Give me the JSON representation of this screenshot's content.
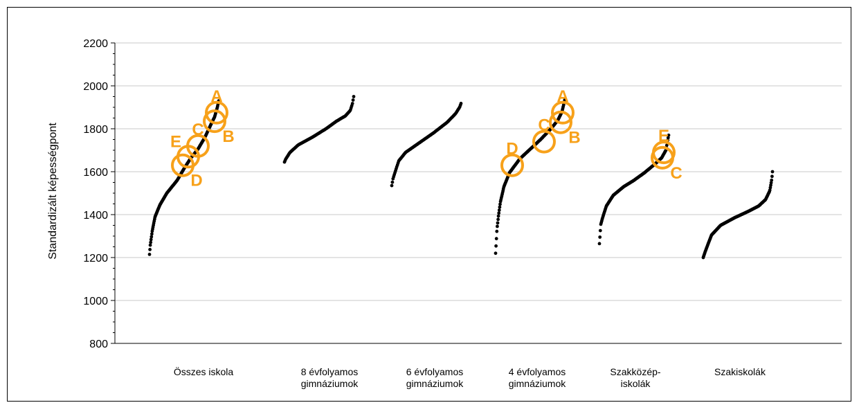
{
  "chart_data": {
    "type": "scatter",
    "title": "",
    "xlabel": "",
    "ylabel": "Standardizált képességpont",
    "ylim": [
      800,
      2200
    ],
    "yticks": [
      800,
      1000,
      1200,
      1400,
      1600,
      1800,
      2000,
      2200
    ],
    "grid": true,
    "legend": "none",
    "point_color": "#000000",
    "annotation_color": "#F7A11A",
    "categories": [
      {
        "lines": [
          "Összes iskola"
        ]
      },
      {
        "lines": [
          "8 évfolyamos",
          "gimnáziumok"
        ]
      },
      {
        "lines": [
          "6 évfolyamos",
          "gimnáziumok"
        ]
      },
      {
        "lines": [
          "4 évfolyamos",
          "gimnáziumok"
        ]
      },
      {
        "lines": [
          "Szakközép-",
          "iskolák"
        ]
      },
      {
        "lines": [
          "Szakiskolák"
        ]
      }
    ],
    "series": [
      {
        "category": 0,
        "n": 180,
        "curve": [
          [
            0,
            1215
          ],
          [
            0.01,
            1255
          ],
          [
            0.04,
            1325
          ],
          [
            0.08,
            1390
          ],
          [
            0.15,
            1445
          ],
          [
            0.25,
            1500
          ],
          [
            0.4,
            1560
          ],
          [
            0.5,
            1615
          ],
          [
            0.6,
            1665
          ],
          [
            0.7,
            1705
          ],
          [
            0.8,
            1760
          ],
          [
            0.88,
            1815
          ],
          [
            0.94,
            1855
          ],
          [
            0.98,
            1900
          ],
          [
            1,
            1930
          ]
        ]
      },
      {
        "category": 1,
        "n": 110,
        "curve": [
          [
            0,
            1645
          ],
          [
            0.02,
            1660
          ],
          [
            0.08,
            1690
          ],
          [
            0.2,
            1725
          ],
          [
            0.4,
            1760
          ],
          [
            0.6,
            1800
          ],
          [
            0.75,
            1835
          ],
          [
            0.88,
            1860
          ],
          [
            0.95,
            1885
          ],
          [
            0.98,
            1915
          ],
          [
            1,
            1950
          ]
        ]
      },
      {
        "category": 2,
        "n": 110,
        "curve": [
          [
            0,
            1535
          ],
          [
            0.02,
            1570
          ],
          [
            0.06,
            1610
          ],
          [
            0.1,
            1650
          ],
          [
            0.2,
            1690
          ],
          [
            0.4,
            1735
          ],
          [
            0.6,
            1780
          ],
          [
            0.8,
            1830
          ],
          [
            0.92,
            1870
          ],
          [
            0.98,
            1900
          ],
          [
            1,
            1918
          ]
        ]
      },
      {
        "category": 3,
        "n": 170,
        "curve": [
          [
            0,
            1220
          ],
          [
            0.02,
            1335
          ],
          [
            0.04,
            1390
          ],
          [
            0.07,
            1460
          ],
          [
            0.12,
            1530
          ],
          [
            0.2,
            1595
          ],
          [
            0.35,
            1660
          ],
          [
            0.5,
            1705
          ],
          [
            0.65,
            1750
          ],
          [
            0.8,
            1800
          ],
          [
            0.9,
            1840
          ],
          [
            0.96,
            1880
          ],
          [
            1,
            1935
          ]
        ]
      },
      {
        "category": 4,
        "n": 150,
        "curve": [
          [
            0,
            1265
          ],
          [
            0.02,
            1355
          ],
          [
            0.05,
            1390
          ],
          [
            0.1,
            1440
          ],
          [
            0.2,
            1490
          ],
          [
            0.35,
            1530
          ],
          [
            0.5,
            1560
          ],
          [
            0.65,
            1595
          ],
          [
            0.8,
            1635
          ],
          [
            0.9,
            1665
          ],
          [
            0.96,
            1700
          ],
          [
            1,
            1770
          ]
        ]
      },
      {
        "category": 5,
        "n": 160,
        "curve": [
          [
            0,
            1200
          ],
          [
            0.02,
            1220
          ],
          [
            0.06,
            1255
          ],
          [
            0.12,
            1305
          ],
          [
            0.25,
            1350
          ],
          [
            0.45,
            1385
          ],
          [
            0.65,
            1415
          ],
          [
            0.8,
            1440
          ],
          [
            0.9,
            1470
          ],
          [
            0.96,
            1510
          ],
          [
            0.99,
            1565
          ],
          [
            1,
            1600
          ]
        ]
      }
    ],
    "annotations": [
      {
        "category": 0,
        "frac": 0.97,
        "value": 1875,
        "label": "A",
        "side": "above"
      },
      {
        "category": 0,
        "frac": 0.94,
        "value": 1835,
        "label": "B",
        "side": "below-right"
      },
      {
        "category": 0,
        "frac": 0.7,
        "value": 1720,
        "label": "C",
        "side": "above"
      },
      {
        "category": 0,
        "frac": 0.48,
        "value": 1630,
        "label": "D",
        "side": "below-right"
      },
      {
        "category": 0,
        "frac": 0.56,
        "value": 1670,
        "label": "E",
        "side": "above-left"
      },
      {
        "category": 3,
        "frac": 0.97,
        "value": 1875,
        "label": "A",
        "side": "above"
      },
      {
        "category": 3,
        "frac": 0.94,
        "value": 1830,
        "label": "B",
        "side": "below-right"
      },
      {
        "category": 3,
        "frac": 0.7,
        "value": 1740,
        "label": "C",
        "side": "above"
      },
      {
        "category": 3,
        "frac": 0.24,
        "value": 1630,
        "label": "D",
        "side": "above"
      },
      {
        "category": 4,
        "frac": 0.93,
        "value": 1690,
        "label": "E",
        "side": "above"
      },
      {
        "category": 4,
        "frac": 0.91,
        "value": 1665,
        "label": "C",
        "side": "below-right"
      }
    ]
  }
}
